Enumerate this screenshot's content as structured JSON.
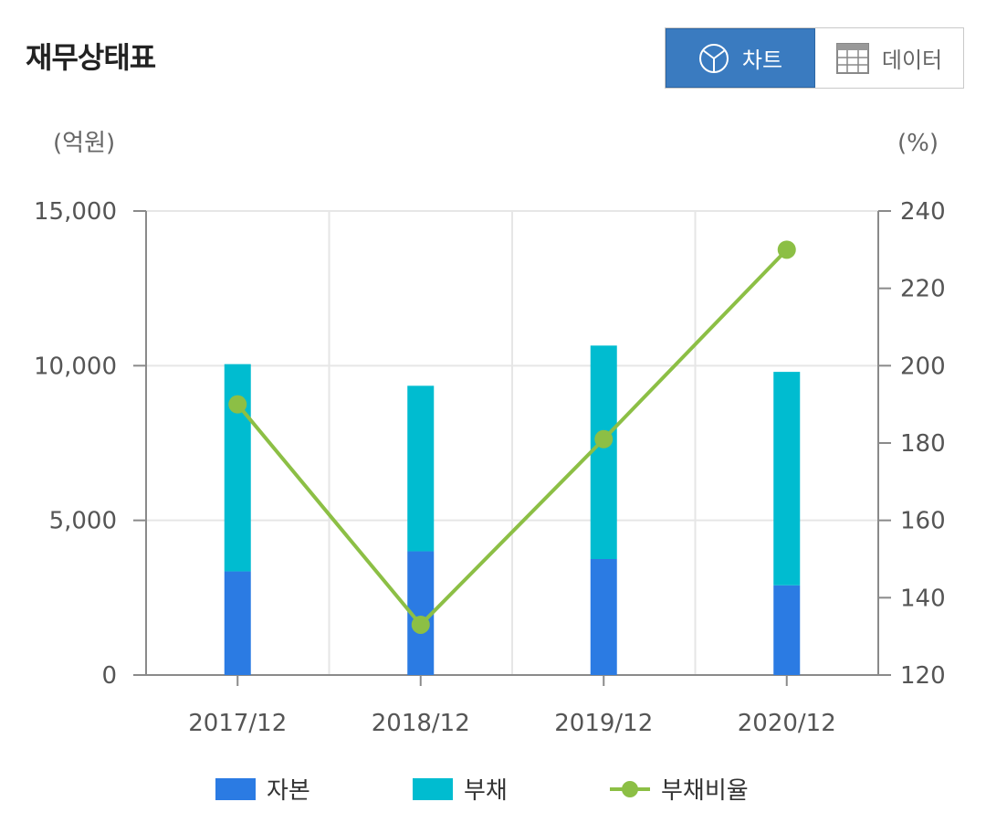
{
  "header": {
    "title": "재무상태표"
  },
  "toggle": {
    "chart_label": "차트",
    "data_label": "데이터"
  },
  "colors": {
    "capital": "#2b7be3",
    "debt": "#00bcd0",
    "ratio": "#8cbf45",
    "axis": "#8a8a8a",
    "grid": "#e6e6e6",
    "accent": "#3a7bc0"
  },
  "chart_data": {
    "type": "bar",
    "stacked": true,
    "categories": [
      "2017/12",
      "2018/12",
      "2019/12",
      "2020/12"
    ],
    "y_left": {
      "unit": "(억원)",
      "range": [
        0,
        15000
      ],
      "ticks": [
        "15,000",
        "10,000",
        "5,000",
        "0"
      ]
    },
    "y_right": {
      "unit": "(%)",
      "range": [
        120,
        240
      ],
      "ticks": [
        "240",
        "220",
        "200",
        "180",
        "160",
        "140",
        "120"
      ]
    },
    "series": [
      {
        "name": "자본",
        "type": "bar",
        "axis": "left",
        "values": [
          3350,
          4000,
          3750,
          2900
        ]
      },
      {
        "name": "부채",
        "type": "bar",
        "axis": "left",
        "values": [
          6700,
          5350,
          6900,
          6900
        ]
      },
      {
        "name": "부채비율",
        "type": "line",
        "axis": "right",
        "values": [
          190,
          133,
          181,
          230
        ]
      }
    ],
    "grid": true
  }
}
